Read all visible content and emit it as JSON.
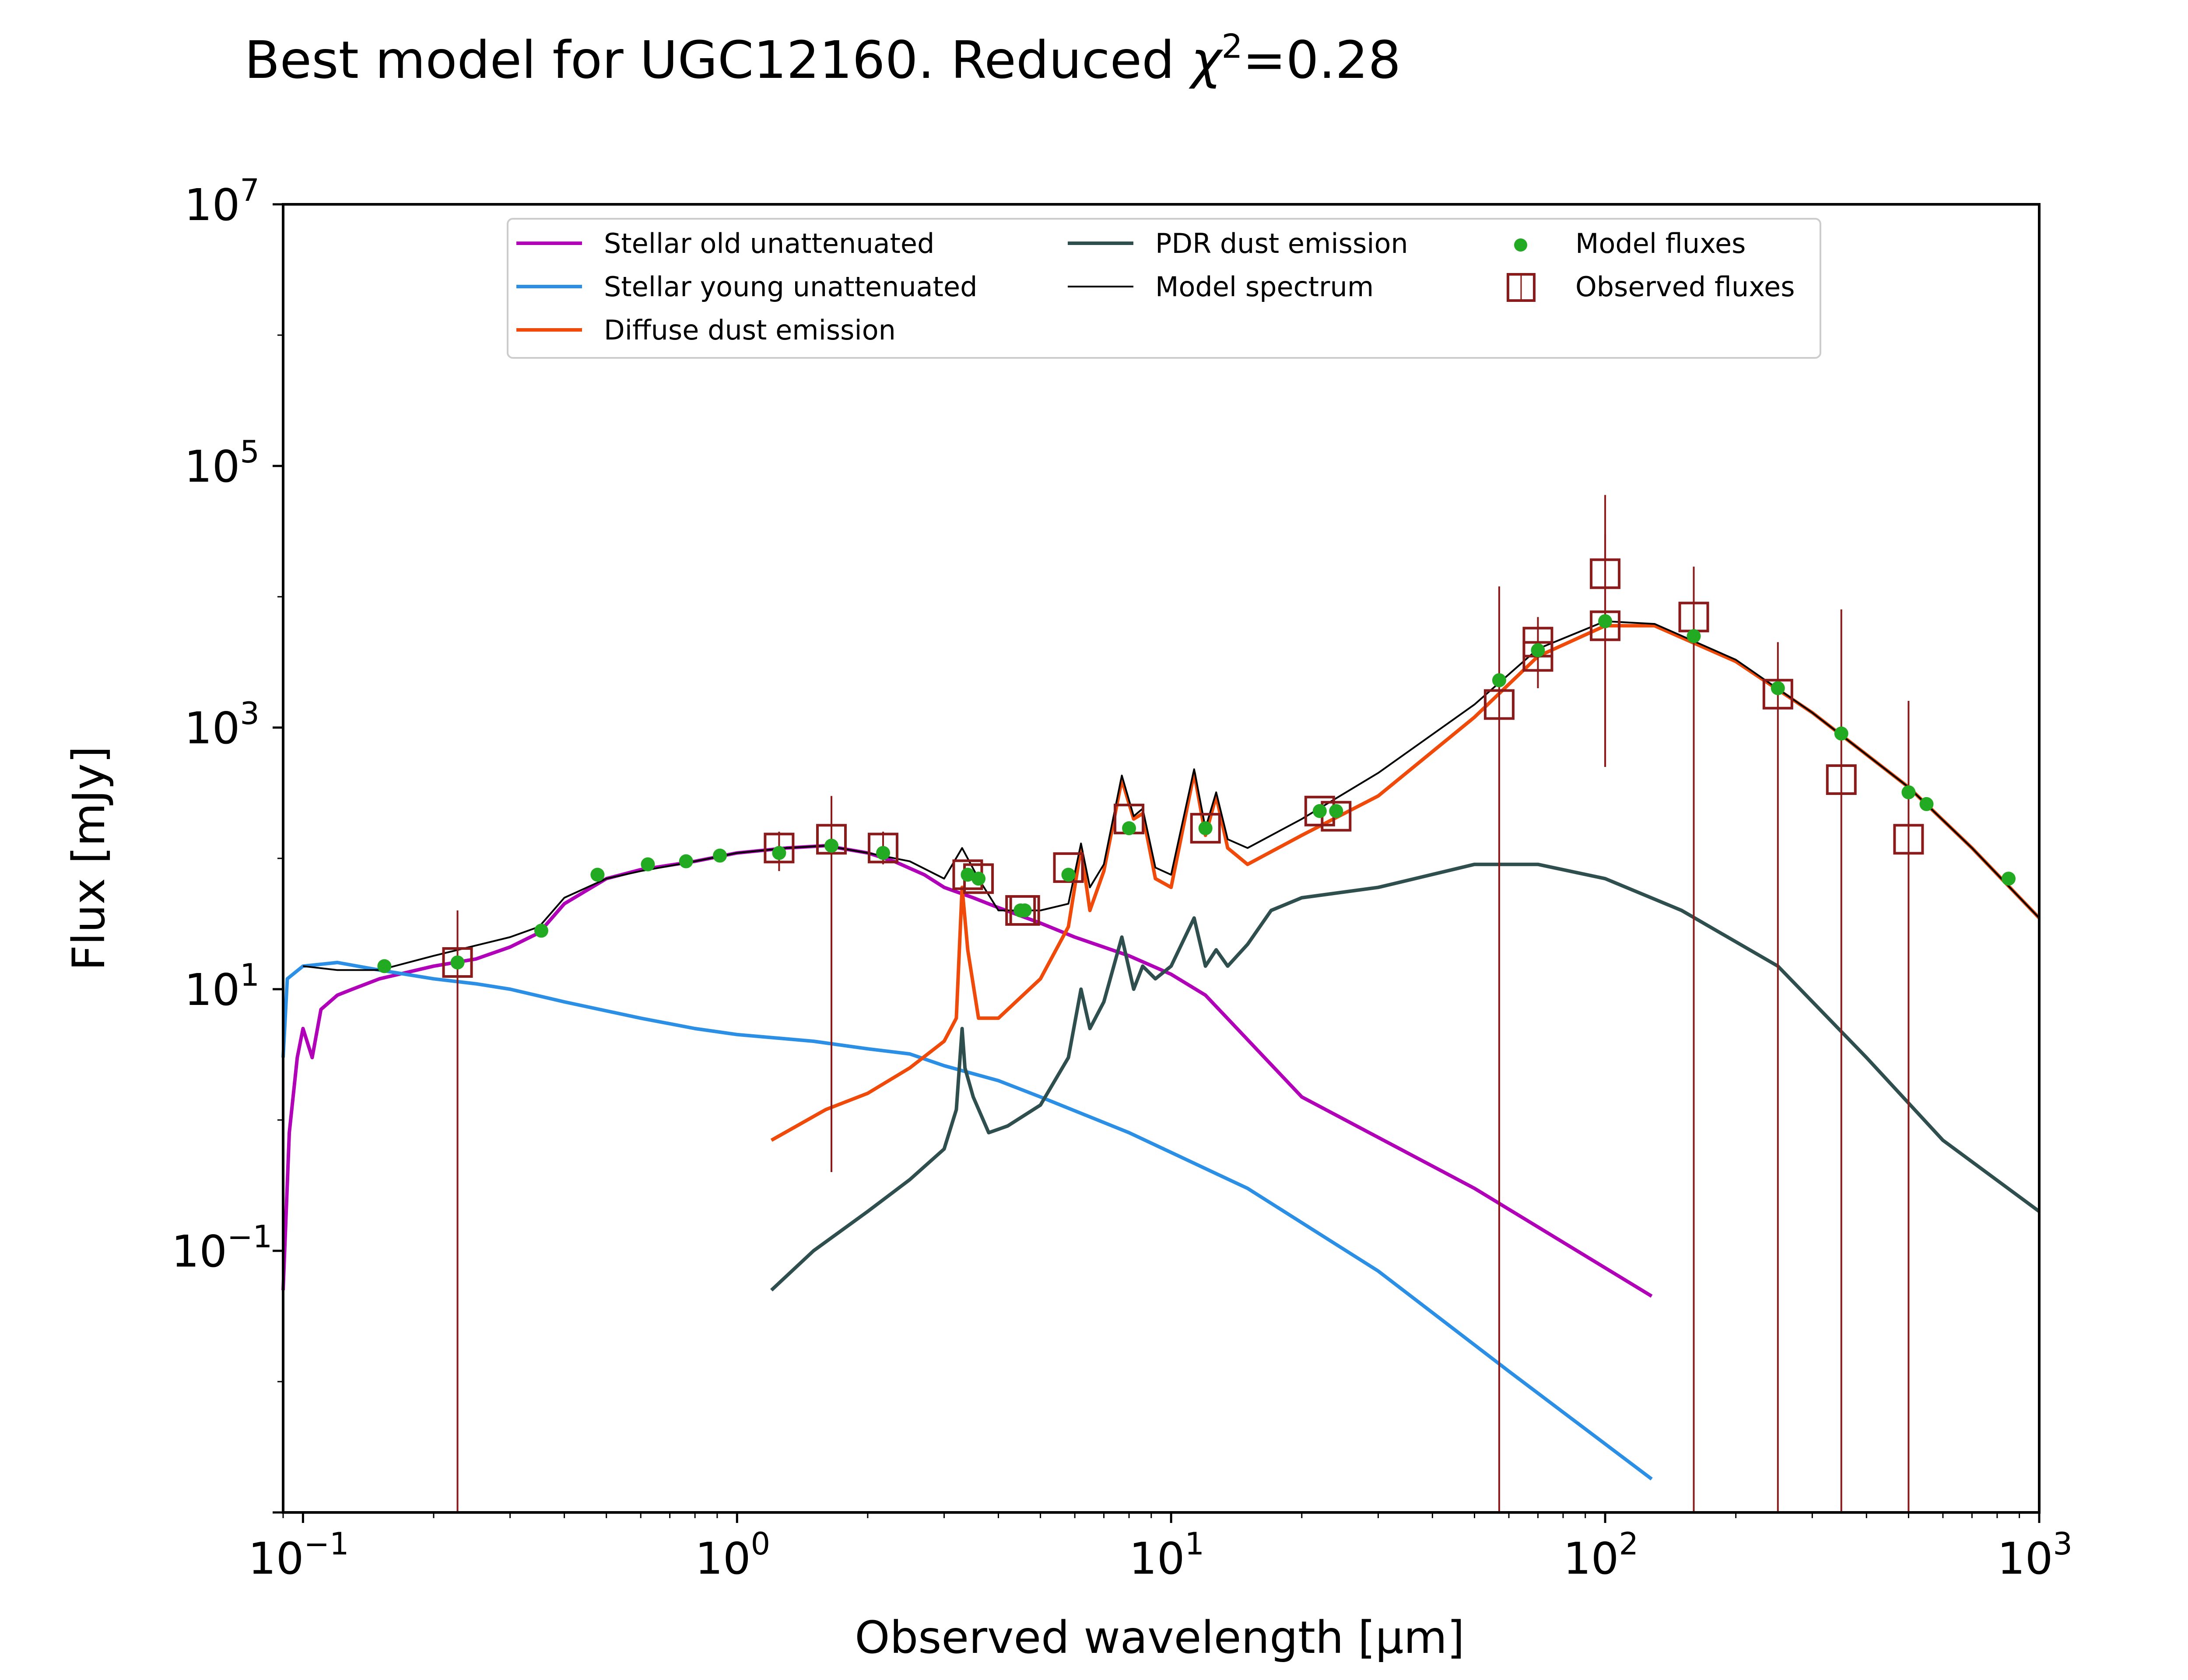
{
  "chart_data": {
    "type": "line",
    "title": "Best model for UGC12160. Reduced χ²=0.28",
    "title_parts": {
      "prefix": "Best model for UGC12160. Reduced ",
      "symbol": "χ",
      "superscript": "2",
      "suffix": "=0.28"
    },
    "xlabel": "Observed wavelength [μm]",
    "ylabel": "Flux [mJy]",
    "x_scale": "log",
    "y_scale": "log",
    "xlim": [
      0.09,
      1000
    ],
    "ylim": [
      0.001,
      10000000
    ],
    "grid": false,
    "legend_position": "top",
    "x_ticks": [
      {
        "base": "10",
        "exp": "−1",
        "value": 0.1
      },
      {
        "base": "10",
        "exp": "0",
        "value": 1
      },
      {
        "base": "10",
        "exp": "1",
        "value": 10
      },
      {
        "base": "10",
        "exp": "2",
        "value": 100
      },
      {
        "base": "10",
        "exp": "3",
        "value": 1000
      }
    ],
    "y_ticks": [
      {
        "base": "10",
        "exp": "−1",
        "value": 0.1
      },
      {
        "base": "10",
        "exp": "1",
        "value": 10
      },
      {
        "base": "10",
        "exp": "3",
        "value": 1000
      },
      {
        "base": "10",
        "exp": "5",
        "value": 100000
      },
      {
        "base": "10",
        "exp": "7",
        "value": 10000000
      }
    ],
    "legend": [
      {
        "label": "Stellar old unattenuated",
        "color": "#b000b8",
        "marker": "line"
      },
      {
        "label": "Stellar young unattenuated",
        "color": "#2b8fe6",
        "marker": "line"
      },
      {
        "label": "Diffuse dust emission",
        "color": "#f04a0a",
        "marker": "line"
      },
      {
        "label": "PDR dust emission",
        "color": "#2f4f4f",
        "marker": "line"
      },
      {
        "label": "Model spectrum",
        "color": "#000000",
        "marker": "thin-line"
      },
      {
        "label": "Model fluxes",
        "color": "#22aa22",
        "marker": "dot"
      },
      {
        "label": "Observed fluxes",
        "color": "#8b1a1a",
        "marker": "open-square"
      }
    ],
    "series": [
      {
        "name": "Stellar old unattenuated",
        "color": "#b000b8",
        "points": [
          [
            0.09,
            0.05
          ],
          [
            0.093,
            0.8
          ],
          [
            0.097,
            3
          ],
          [
            0.1,
            5
          ],
          [
            0.105,
            3
          ],
          [
            0.11,
            7
          ],
          [
            0.12,
            9
          ],
          [
            0.13,
            10
          ],
          [
            0.15,
            12
          ],
          [
            0.2,
            15
          ],
          [
            0.25,
            17
          ],
          [
            0.3,
            21
          ],
          [
            0.35,
            27
          ],
          [
            0.4,
            45
          ],
          [
            0.5,
            70
          ],
          [
            0.6,
            82
          ],
          [
            0.8,
            95
          ],
          [
            1.0,
            110
          ],
          [
            1.3,
            120
          ],
          [
            1.6,
            125
          ],
          [
            2.0,
            110
          ],
          [
            2.3,
            95
          ],
          [
            2.7,
            75
          ],
          [
            3.0,
            60
          ],
          [
            3.5,
            50
          ],
          [
            4.0,
            42
          ],
          [
            5.0,
            32
          ],
          [
            6.0,
            25
          ],
          [
            8.0,
            18
          ],
          [
            10.0,
            13
          ],
          [
            12.0,
            9
          ],
          [
            20.0,
            1.5
          ],
          [
            50.0,
            0.3
          ],
          [
            128.0,
            0.045
          ]
        ]
      },
      {
        "name": "Stellar young unattenuated",
        "color": "#2b8fe6",
        "points": [
          [
            0.09,
            3
          ],
          [
            0.092,
            12
          ],
          [
            0.1,
            15
          ],
          [
            0.12,
            16
          ],
          [
            0.15,
            14
          ],
          [
            0.2,
            12
          ],
          [
            0.25,
            11
          ],
          [
            0.3,
            10
          ],
          [
            0.4,
            8
          ],
          [
            0.6,
            6
          ],
          [
            0.8,
            5
          ],
          [
            1.0,
            4.5
          ],
          [
            1.5,
            4
          ],
          [
            2.0,
            3.5
          ],
          [
            2.5,
            3.2
          ],
          [
            3.0,
            2.6
          ],
          [
            4.0,
            2.0
          ],
          [
            5.0,
            1.5
          ],
          [
            8.0,
            0.8
          ],
          [
            15.0,
            0.3
          ],
          [
            30.0,
            0.07
          ],
          [
            60.0,
            0.012
          ],
          [
            128.0,
            0.0018
          ]
        ]
      },
      {
        "name": "Diffuse dust emission",
        "color": "#f04a0a",
        "points": [
          [
            1.2,
            0.7
          ],
          [
            1.6,
            1.2
          ],
          [
            2.0,
            1.6
          ],
          [
            2.5,
            2.5
          ],
          [
            3.0,
            4
          ],
          [
            3.2,
            6
          ],
          [
            3.3,
            60
          ],
          [
            3.4,
            20
          ],
          [
            3.6,
            6
          ],
          [
            4.0,
            6
          ],
          [
            5.0,
            12
          ],
          [
            5.8,
            30
          ],
          [
            6.2,
            120
          ],
          [
            6.5,
            40
          ],
          [
            7.0,
            80
          ],
          [
            7.7,
            400
          ],
          [
            8.2,
            200
          ],
          [
            8.6,
            220
          ],
          [
            9.2,
            70
          ],
          [
            10.0,
            60
          ],
          [
            11.3,
            450
          ],
          [
            12.0,
            150
          ],
          [
            12.7,
            300
          ],
          [
            13.5,
            120
          ],
          [
            15.0,
            90
          ],
          [
            20.0,
            150
          ],
          [
            30.0,
            300
          ],
          [
            50.0,
            1200
          ],
          [
            70.0,
            3500
          ],
          [
            100.0,
            6000
          ],
          [
            130.0,
            6000
          ],
          [
            200.0,
            3200
          ],
          [
            300.0,
            1300
          ],
          [
            500.0,
            350
          ],
          [
            700.0,
            120
          ],
          [
            1000.0,
            35
          ]
        ]
      },
      {
        "name": "PDR dust emission",
        "color": "#2f4f4f",
        "points": [
          [
            1.2,
            0.05
          ],
          [
            1.5,
            0.1
          ],
          [
            2.0,
            0.2
          ],
          [
            2.5,
            0.35
          ],
          [
            3.0,
            0.6
          ],
          [
            3.2,
            1.2
          ],
          [
            3.3,
            5
          ],
          [
            3.35,
            2.5
          ],
          [
            3.5,
            1.5
          ],
          [
            3.8,
            0.8
          ],
          [
            4.2,
            0.9
          ],
          [
            5.0,
            1.3
          ],
          [
            5.8,
            3
          ],
          [
            6.2,
            10
          ],
          [
            6.5,
            5
          ],
          [
            7.0,
            8
          ],
          [
            7.7,
            25
          ],
          [
            8.2,
            10
          ],
          [
            8.6,
            15
          ],
          [
            9.2,
            12
          ],
          [
            10.0,
            15
          ],
          [
            11.3,
            35
          ],
          [
            12.0,
            15
          ],
          [
            12.7,
            20
          ],
          [
            13.5,
            15
          ],
          [
            15.0,
            22
          ],
          [
            17.0,
            40
          ],
          [
            20.0,
            50
          ],
          [
            30.0,
            60
          ],
          [
            50.0,
            90
          ],
          [
            70.0,
            90
          ],
          [
            100.0,
            70
          ],
          [
            150.0,
            40
          ],
          [
            250.0,
            15
          ],
          [
            400.0,
            3
          ],
          [
            600.0,
            0.7
          ],
          [
            1000.0,
            0.2
          ]
        ]
      },
      {
        "name": "Model spectrum",
        "color": "#000000",
        "points": [
          [
            0.1,
            15
          ],
          [
            0.12,
            14
          ],
          [
            0.15,
            14
          ],
          [
            0.2,
            18
          ],
          [
            0.3,
            25
          ],
          [
            0.35,
            30
          ],
          [
            0.4,
            50
          ],
          [
            0.5,
            70
          ],
          [
            0.6,
            80
          ],
          [
            0.8,
            95
          ],
          [
            1.0,
            110
          ],
          [
            1.3,
            120
          ],
          [
            1.6,
            125
          ],
          [
            2.0,
            110
          ],
          [
            2.5,
            95
          ],
          [
            3.0,
            70
          ],
          [
            3.3,
            120
          ],
          [
            3.6,
            70
          ],
          [
            4.0,
            40
          ],
          [
            5.0,
            40
          ],
          [
            5.8,
            45
          ],
          [
            6.2,
            130
          ],
          [
            6.5,
            60
          ],
          [
            7.0,
            90
          ],
          [
            7.7,
            430
          ],
          [
            8.2,
            210
          ],
          [
            8.6,
            240
          ],
          [
            9.2,
            85
          ],
          [
            10.0,
            75
          ],
          [
            11.3,
            480
          ],
          [
            12.0,
            170
          ],
          [
            12.7,
            320
          ],
          [
            13.5,
            140
          ],
          [
            15.0,
            120
          ],
          [
            20.0,
            200
          ],
          [
            30.0,
            450
          ],
          [
            50.0,
            1500
          ],
          [
            70.0,
            4000
          ],
          [
            100.0,
            6500
          ],
          [
            130.0,
            6200
          ],
          [
            200.0,
            3300
          ],
          [
            300.0,
            1300
          ],
          [
            500.0,
            350
          ],
          [
            700.0,
            120
          ],
          [
            1000.0,
            35
          ]
        ]
      }
    ],
    "model_fluxes": {
      "name": "Model fluxes",
      "color": "#22aa22",
      "points": [
        [
          0.154,
          15
        ],
        [
          0.227,
          16
        ],
        [
          0.354,
          28
        ],
        [
          0.477,
          75
        ],
        [
          0.623,
          90
        ],
        [
          0.763,
          95
        ],
        [
          0.913,
          105
        ],
        [
          1.25,
          110
        ],
        [
          1.65,
          125
        ],
        [
          2.17,
          110
        ],
        [
          3.4,
          75
        ],
        [
          3.6,
          70
        ],
        [
          4.5,
          40
        ],
        [
          4.6,
          40
        ],
        [
          5.8,
          75
        ],
        [
          8.0,
          170
        ],
        [
          12.0,
          170
        ],
        [
          22.0,
          230
        ],
        [
          24.0,
          230
        ],
        [
          57.0,
          2300
        ],
        [
          70.0,
          3900
        ],
        [
          100.0,
          6500
        ],
        [
          160.0,
          5000
        ],
        [
          250.0,
          2000
        ],
        [
          350.0,
          900
        ],
        [
          500.0,
          320
        ],
        [
          550.0,
          260
        ],
        [
          850.0,
          70
        ]
      ]
    },
    "observed_fluxes": {
      "name": "Observed fluxes",
      "color": "#8b1a1a",
      "points": [
        {
          "x": 0.227,
          "y": 16,
          "ylo": 0.001,
          "yhi": 40
        },
        {
          "x": 1.25,
          "y": 120,
          "ylo": 80,
          "yhi": 160
        },
        {
          "x": 1.65,
          "y": 140,
          "ylo": 0.4,
          "yhi": 300
        },
        {
          "x": 2.17,
          "y": 120,
          "ylo": 90,
          "yhi": 160
        },
        {
          "x": 3.4,
          "y": 75
        },
        {
          "x": 3.6,
          "y": 70
        },
        {
          "x": 4.5,
          "y": 40
        },
        {
          "x": 4.6,
          "y": 40
        },
        {
          "x": 5.8,
          "y": 85
        },
        {
          "x": 8.0,
          "y": 200
        },
        {
          "x": 12.0,
          "y": 170
        },
        {
          "x": 22.0,
          "y": 230
        },
        {
          "x": 24.0,
          "y": 210
        },
        {
          "x": 57.0,
          "y": 1500,
          "ylo": 0.001,
          "yhi": 12000
        },
        {
          "x": 70.0,
          "y": 3500,
          "ylo": 2000,
          "yhi": 7000
        },
        {
          "x": 70.0,
          "y": 4500
        },
        {
          "x": 100.0,
          "y": 15000,
          "ylo": 500,
          "yhi": 60000
        },
        {
          "x": 100.0,
          "y": 6000,
          "ylo": 500,
          "yhi": 30000
        },
        {
          "x": 160.0,
          "y": 7000,
          "ylo": 0.001,
          "yhi": 17000
        },
        {
          "x": 250.0,
          "y": 1800,
          "ylo": 0.001,
          "yhi": 4500
        },
        {
          "x": 350.0,
          "y": 400,
          "ylo": 0.001,
          "yhi": 8000
        },
        {
          "x": 500.0,
          "y": 140,
          "ylo": 0.001,
          "yhi": 1600
        }
      ]
    }
  }
}
